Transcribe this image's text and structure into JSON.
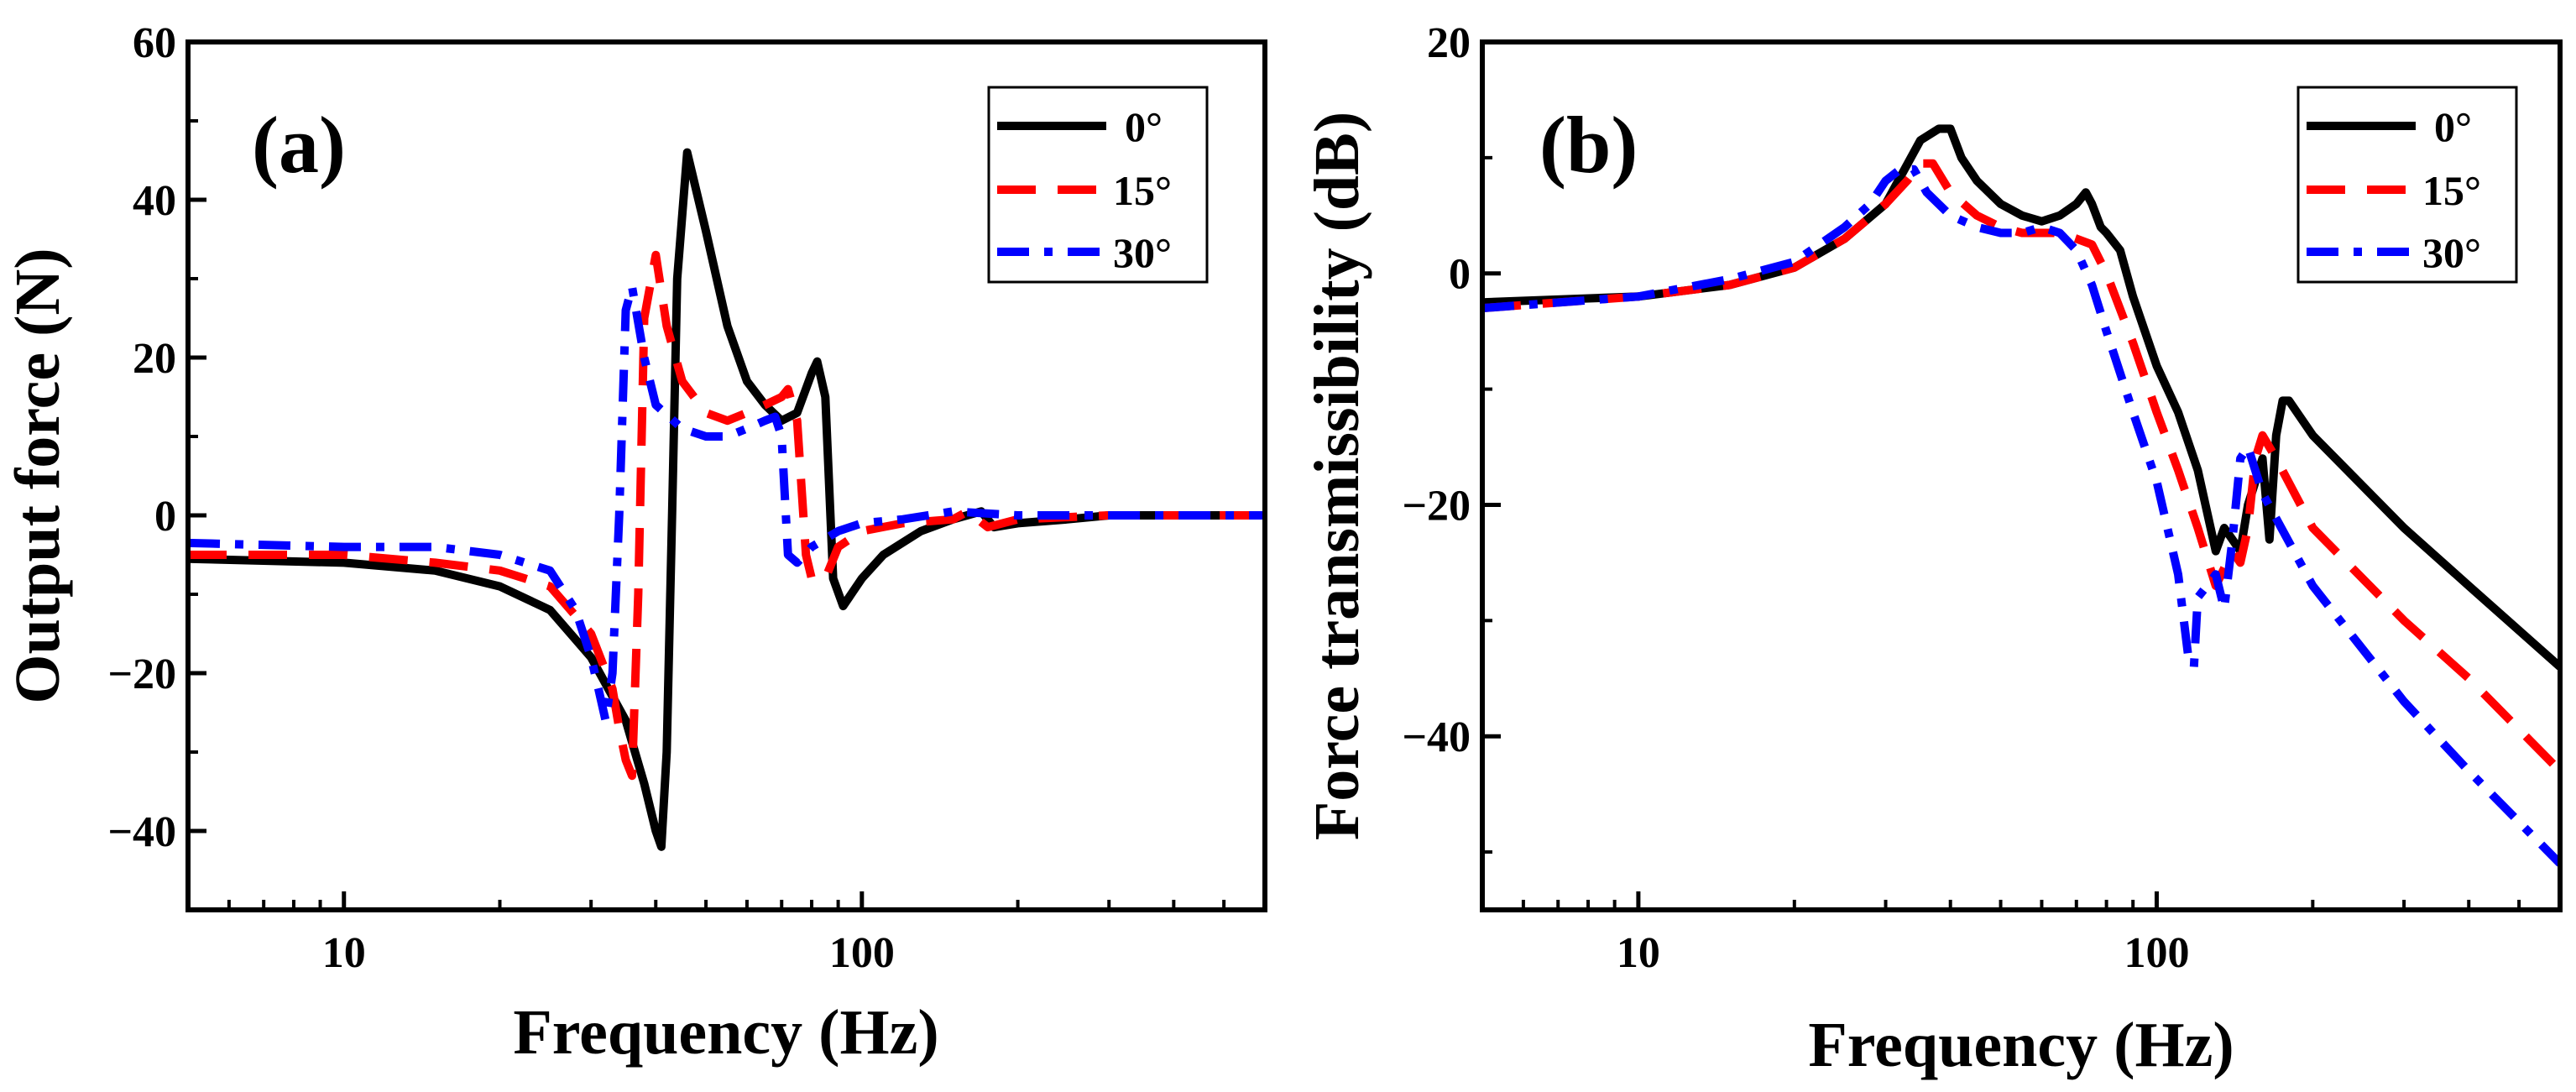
{
  "colors": {
    "s0": "#000000",
    "s15": "#ff0000",
    "s30": "#0000ff"
  },
  "chart_data": [
    {
      "type": "line",
      "panel_label": "(a)",
      "xlabel": "Frequency (Hz)",
      "ylabel": "Output force  (N)",
      "xscale": "log",
      "xlim": [
        5,
        600
      ],
      "ylim": [
        -50,
        60
      ],
      "xticks": [
        10,
        100
      ],
      "xtick_labels": [
        "10",
        "100"
      ],
      "yticks": [
        -40,
        -20,
        0,
        20,
        40,
        60
      ],
      "ytick_labels": [
        "−40",
        "−20",
        "0",
        "20",
        "40",
        "60"
      ],
      "legend_position": "top-right",
      "series": [
        {
          "name": "0°",
          "style": "solid",
          "x": [
            5,
            10,
            15,
            20,
            25,
            30,
            35,
            38,
            40,
            41,
            42,
            43,
            44,
            46,
            50,
            55,
            60,
            65,
            70,
            75,
            80,
            82,
            85,
            88,
            92,
            100,
            110,
            130,
            150,
            170,
            180,
            200,
            250,
            300,
            400,
            600
          ],
          "y": [
            -5.5,
            -6,
            -7,
            -9,
            -12,
            -18,
            -26,
            -34,
            -40,
            -42,
            -30,
            0,
            30,
            46,
            36,
            24,
            17,
            14,
            12,
            13,
            18,
            19.5,
            15,
            -8,
            -11.5,
            -8,
            -5,
            -2,
            -0.5,
            0.5,
            -1.5,
            -1,
            -0.5,
            0,
            0,
            0
          ]
        },
        {
          "name": "15°",
          "style": "dashed",
          "x": [
            5,
            10,
            15,
            20,
            25,
            30,
            33,
            34,
            35,
            36,
            37,
            38,
            40,
            42,
            45,
            50,
            55,
            60,
            65,
            70,
            72,
            75,
            78,
            80,
            85,
            90,
            100,
            120,
            150,
            160,
            175,
            200,
            300,
            600
          ],
          "y": [
            -5,
            -5,
            -6,
            -7,
            -9,
            -15,
            -22,
            -27,
            -31,
            -33,
            -10,
            25,
            33,
            24,
            17,
            13,
            12,
            13,
            14,
            15,
            16,
            12,
            -5,
            -8,
            -8,
            -4,
            -2,
            -1,
            -0.5,
            0.5,
            -1.5,
            -0.5,
            0,
            0
          ]
        },
        {
          "name": "30°",
          "style": "dashdot",
          "x": [
            5,
            10,
            15,
            20,
            25,
            28,
            30,
            31,
            32,
            33,
            34,
            35,
            36,
            38,
            40,
            45,
            50,
            55,
            60,
            65,
            68,
            70,
            72,
            75,
            80,
            90,
            100,
            120,
            150,
            200,
            300,
            600
          ],
          "y": [
            -3.5,
            -4,
            -4,
            -5,
            -7,
            -12,
            -18,
            -22,
            -26,
            -20,
            0,
            26,
            29,
            20,
            14,
            11,
            10,
            10,
            11,
            12,
            12.5,
            10,
            -5,
            -6,
            -4,
            -2,
            -1,
            -0.5,
            0.5,
            0,
            0,
            0
          ]
        }
      ]
    },
    {
      "type": "line",
      "panel_label": "(b)",
      "xlabel": "Frequency (Hz)",
      "ylabel": "Force transmissibility (dB)",
      "xscale": "log",
      "xlim": [
        5,
        600
      ],
      "ylim": [
        -55,
        20
      ],
      "xticks": [
        10,
        100
      ],
      "xtick_labels": [
        "10",
        "100"
      ],
      "yticks": [
        -40,
        -20,
        0,
        20
      ],
      "ytick_labels": [
        "−40",
        "−20",
        "0",
        "20"
      ],
      "legend_position": "top-right",
      "series": [
        {
          "name": "0°",
          "style": "solid",
          "x": [
            5,
            10,
            15,
            20,
            25,
            30,
            35,
            38,
            40,
            42,
            45,
            50,
            55,
            60,
            65,
            70,
            73,
            75,
            78,
            80,
            85,
            90,
            100,
            110,
            120,
            130,
            135,
            140,
            145,
            150,
            155,
            160,
            165,
            170,
            175,
            180,
            200,
            300,
            400,
            600
          ],
          "y": [
            -2.5,
            -2,
            -1,
            0.5,
            3,
            6,
            11.5,
            12.5,
            12.5,
            10,
            8,
            6,
            5,
            4.5,
            5,
            6,
            7,
            6,
            4,
            3.5,
            2,
            -2,
            -8,
            -12,
            -17,
            -24,
            -22,
            -23,
            -24,
            -20,
            -18,
            -16,
            -23,
            -14,
            -11,
            -11,
            -14,
            -22,
            -27,
            -34
          ]
        },
        {
          "name": "15°",
          "style": "dashed",
          "x": [
            5,
            10,
            15,
            20,
            25,
            30,
            33,
            35,
            37,
            40,
            45,
            50,
            55,
            60,
            65,
            70,
            75,
            80,
            90,
            100,
            110,
            120,
            130,
            140,
            145,
            150,
            155,
            160,
            170,
            200,
            300,
            400,
            600
          ],
          "y": [
            -3,
            -2,
            -1,
            0.5,
            3,
            6,
            8,
            9.5,
            9.5,
            7,
            5,
            4,
            3.5,
            3.5,
            3.5,
            3,
            2.5,
            0,
            -6,
            -12,
            -17,
            -22,
            -27,
            -24,
            -25,
            -22,
            -16,
            -14,
            -16,
            -22,
            -30,
            -35,
            -43
          ]
        },
        {
          "name": "30°",
          "style": "dashdot",
          "x": [
            5,
            10,
            15,
            20,
            25,
            28,
            30,
            32,
            34,
            36,
            40,
            45,
            50,
            55,
            60,
            65,
            70,
            75,
            80,
            90,
            100,
            110,
            115,
            118,
            120,
            125,
            130,
            135,
            140,
            145,
            150,
            160,
            200,
            300,
            400,
            600
          ],
          "y": [
            -3,
            -2,
            -0.5,
            1,
            4,
            6,
            8,
            9,
            9,
            7,
            5,
            4,
            3.5,
            3.5,
            4,
            3.5,
            2,
            -1,
            -5,
            -12,
            -18,
            -26,
            -33,
            -34,
            -28,
            -27,
            -26,
            -29,
            -23,
            -16,
            -15,
            -19,
            -27,
            -37,
            -43,
            -51
          ]
        }
      ]
    }
  ]
}
